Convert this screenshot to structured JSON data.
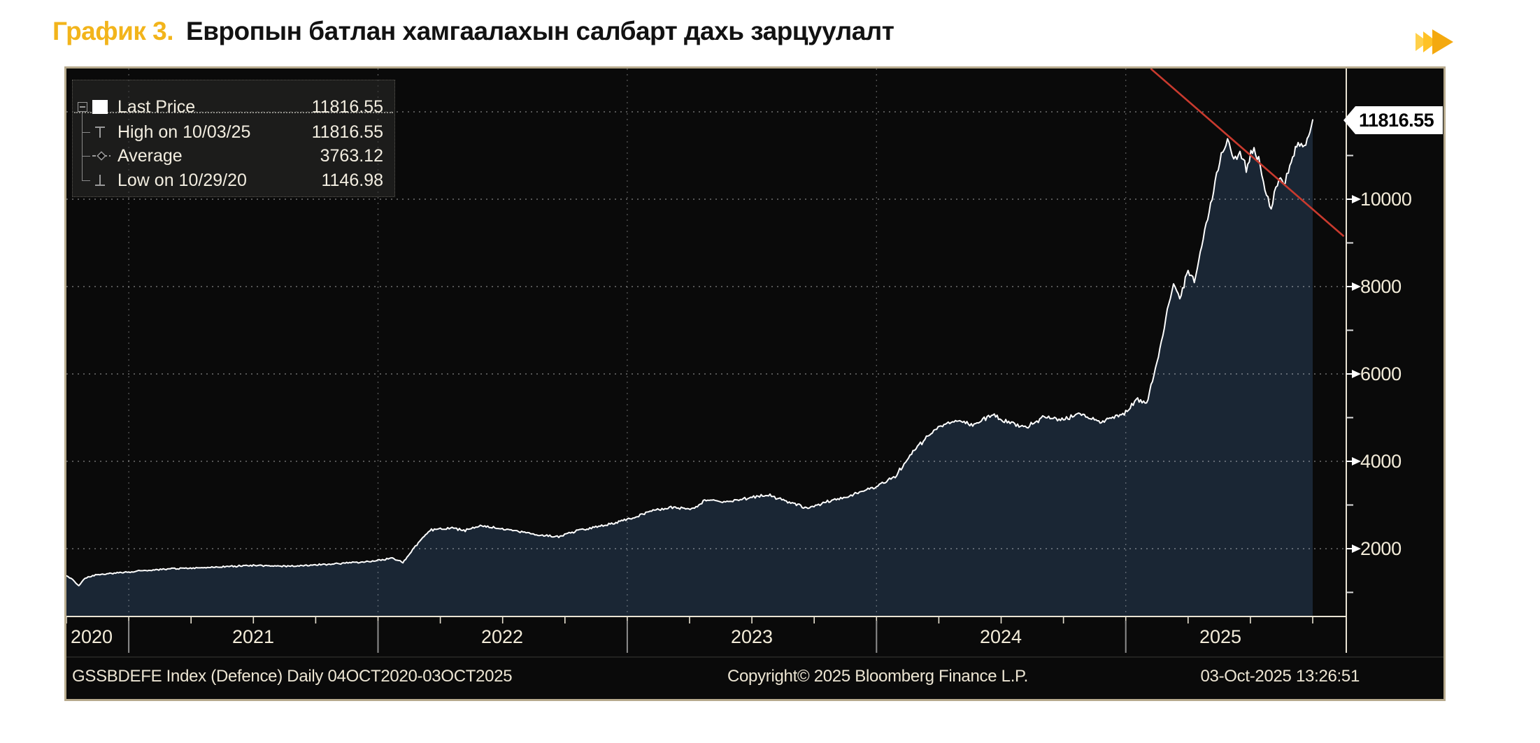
{
  "header": {
    "chart_label": "График 3.",
    "title": "Европын батлан хамгаалахын салбарт дахь зарцуулалт"
  },
  "chart": {
    "frame_color": "#b7aa8d",
    "bg": "#0a0a0a",
    "fill_color": "#1a2634",
    "line_color": "#ffffff",
    "trend_color": "#c93a2e",
    "legend": {
      "rows": [
        {
          "icon": "series-swatch",
          "label": "Last Price",
          "value": "11816.55"
        },
        {
          "icon": "high-marker",
          "label": "High on 10/03/25",
          "value": "11816.55"
        },
        {
          "icon": "average-marker",
          "label": "Average",
          "value": "3763.12"
        },
        {
          "icon": "low-marker",
          "label": "Low on 10/29/20",
          "value": "1146.98"
        }
      ]
    },
    "y_axis": {
      "price_label": "11816.55",
      "ticks": [
        "10000",
        "8000",
        "6000",
        "4000",
        "2000"
      ]
    },
    "x_axis": {
      "years": [
        "2020",
        "2021",
        "2022",
        "2023",
        "2024",
        "2025"
      ]
    },
    "footer": {
      "left": "GSSBDEFE Index (Defence) Daily 04OCT2020-03OCT2025",
      "center": "Copyright© 2025 Bloomberg Finance L.P.",
      "right": "03-Oct-2025 13:26:51"
    }
  },
  "chart_data": {
    "type": "area",
    "series_name": "GSSBDEFE Index (Defence)",
    "x_start": "04OCT2020",
    "x_end": "03OCT2025",
    "x_unit": "months_since_Oct_2020",
    "ylim": [
      448,
      12992
    ],
    "y_ticks": [
      2000,
      4000,
      6000,
      8000,
      10000
    ],
    "y_gridlines": [
      2000,
      4000,
      6000,
      8000,
      10000,
      12000
    ],
    "year_boundaries_month": [
      3,
      15,
      27,
      39,
      51
    ],
    "last_price": 11816.55,
    "high": {
      "date": "10/03/25",
      "value": 11816.55
    },
    "average": 3763.12,
    "low": {
      "date": "10/29/20",
      "value": 1146.98
    },
    "trend_line": {
      "points_month_value": [
        [
          52.2,
          12990
        ],
        [
          61.5,
          9150
        ]
      ]
    },
    "series": [
      {
        "name": "Last Price",
        "points": [
          [
            0,
            1380
          ],
          [
            0.3,
            1290
          ],
          [
            0.6,
            1147
          ],
          [
            0.9,
            1330
          ],
          [
            1.4,
            1400
          ],
          [
            3,
            1470
          ],
          [
            5,
            1540
          ],
          [
            7,
            1570
          ],
          [
            9,
            1620
          ],
          [
            11,
            1600
          ],
          [
            13,
            1660
          ],
          [
            14.4,
            1700
          ],
          [
            15,
            1730
          ],
          [
            15.7,
            1790
          ],
          [
            16.2,
            1690
          ],
          [
            16.8,
            2050
          ],
          [
            17.5,
            2430
          ],
          [
            18.5,
            2480
          ],
          [
            19.2,
            2420
          ],
          [
            20,
            2540
          ],
          [
            20.7,
            2470
          ],
          [
            21.7,
            2410
          ],
          [
            22.7,
            2310
          ],
          [
            23.7,
            2280
          ],
          [
            24.7,
            2430
          ],
          [
            25.7,
            2510
          ],
          [
            27,
            2660
          ],
          [
            28.1,
            2860
          ],
          [
            29.1,
            2960
          ],
          [
            30.1,
            2900
          ],
          [
            30.8,
            3120
          ],
          [
            31.8,
            3070
          ],
          [
            32.8,
            3160
          ],
          [
            33.8,
            3230
          ],
          [
            34.8,
            3060
          ],
          [
            35.7,
            2930
          ],
          [
            36.5,
            3060
          ],
          [
            37.7,
            3210
          ],
          [
            39,
            3430
          ],
          [
            39.9,
            3660
          ],
          [
            40.9,
            4300
          ],
          [
            41.9,
            4760
          ],
          [
            42.8,
            4950
          ],
          [
            43.7,
            4820
          ],
          [
            44.6,
            5060
          ],
          [
            45.5,
            4860
          ],
          [
            46.3,
            4800
          ],
          [
            47,
            5010
          ],
          [
            48,
            4960
          ],
          [
            48.8,
            5110
          ],
          [
            49.7,
            4900
          ],
          [
            50.3,
            5000
          ],
          [
            51,
            5120
          ],
          [
            51.5,
            5430
          ],
          [
            52,
            5320
          ],
          [
            52.5,
            6250
          ],
          [
            53,
            7450
          ],
          [
            53.3,
            8050
          ],
          [
            53.6,
            7720
          ],
          [
            54,
            8350
          ],
          [
            54.3,
            8120
          ],
          [
            54.8,
            9250
          ],
          [
            55.3,
            10420
          ],
          [
            55.6,
            10950
          ],
          [
            55.9,
            11350
          ],
          [
            56.2,
            10820
          ],
          [
            56.5,
            11050
          ],
          [
            56.8,
            10680
          ],
          [
            57.1,
            11120
          ],
          [
            57.4,
            10900
          ],
          [
            57.7,
            10250
          ],
          [
            58,
            9720
          ],
          [
            58.3,
            10420
          ],
          [
            58.6,
            10320
          ],
          [
            58.9,
            10820
          ],
          [
            59.3,
            11250
          ],
          [
            59.6,
            11100
          ],
          [
            60,
            11816.55
          ]
        ]
      }
    ]
  }
}
